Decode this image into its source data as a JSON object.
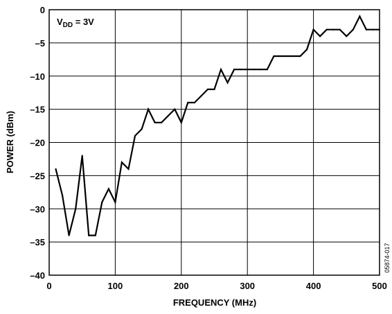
{
  "chart_data": {
    "type": "line",
    "title": "",
    "xlabel": "FREQUENCY (MHz)",
    "ylabel": "POWER (dBm)",
    "xlim": [
      0,
      500
    ],
    "ylim": [
      -40,
      0
    ],
    "xticks": [
      "0",
      "100",
      "200",
      "300",
      "400",
      "500"
    ],
    "yticks": [
      "0",
      "–5",
      "–10",
      "–15",
      "–20",
      "–25",
      "–30",
      "–35",
      "–40"
    ],
    "grid": true,
    "annotation": {
      "main": "V",
      "sub": "DD",
      "tail": " = 3V"
    },
    "figure_id": "05874-017",
    "line_color": "#000000",
    "series": [
      {
        "x": [
          10,
          20,
          30,
          40,
          50,
          60,
          70,
          80,
          90,
          100,
          110,
          120,
          130,
          140,
          150,
          160,
          170,
          180,
          190,
          200,
          210,
          220,
          230,
          240,
          250,
          260,
          270,
          280,
          290,
          300,
          310,
          320,
          330,
          340,
          350,
          360,
          370,
          380,
          390,
          400,
          410,
          420,
          430,
          440,
          450,
          460,
          470,
          480,
          490,
          500
        ],
        "y": [
          -24,
          -28,
          -34,
          -30,
          -22,
          -34,
          -34,
          -29,
          -27,
          -29,
          -23,
          -24,
          -19,
          -18,
          -15,
          -17,
          -17,
          -16,
          -15,
          -17,
          -14,
          -14,
          -13,
          -12,
          -12,
          -9,
          -11,
          -9,
          -9,
          -9,
          -9,
          -9,
          -9,
          -7,
          -7,
          -7,
          -7,
          -7,
          -6,
          -3,
          -4,
          -3,
          -3,
          -3,
          -4,
          -3,
          -1,
          -3,
          -3,
          -3
        ]
      }
    ]
  }
}
